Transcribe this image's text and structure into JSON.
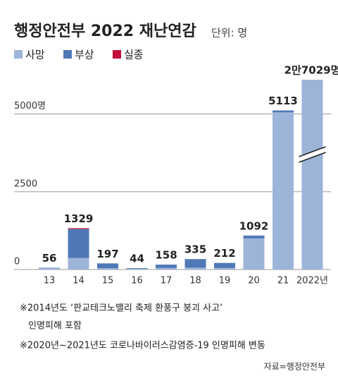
{
  "chart_data": {
    "type": "bar",
    "stacked": true,
    "title": "행정안전부 2022 재난연감",
    "subtitle": "단위: 명",
    "categories": [
      "13",
      "14",
      "15",
      "16",
      "17",
      "18",
      "19",
      "20",
      "21",
      "2022년"
    ],
    "series": [
      {
        "name": "사망",
        "color": "#9db4d9",
        "values": [
          40,
          370,
          40,
          20,
          50,
          60,
          50,
          1000,
          5050,
          26829
        ]
      },
      {
        "name": "부상",
        "color": "#4f78b6",
        "values": [
          16,
          930,
          157,
          24,
          108,
          275,
          162,
          92,
          63,
          200
        ]
      },
      {
        "name": "실종",
        "color": "#c4103c",
        "values": [
          0,
          29,
          0,
          0,
          0,
          0,
          0,
          0,
          0,
          0
        ]
      }
    ],
    "totals": [
      56,
      1329,
      197,
      44,
      158,
      335,
      212,
      1092,
      5113,
      27029
    ],
    "value_labels": [
      "56",
      "1329",
      "197",
      "44",
      "158",
      "335",
      "212",
      "1092",
      "5113",
      "2만7029명"
    ],
    "ylim": [
      0,
      6100
    ],
    "yticks": [
      0,
      2500,
      {
        "value": 5000,
        "label": "5000명"
      }
    ],
    "grid": true,
    "axis_break": true,
    "notes": [
      "※2014년도 ‘판교테크노밸리 축제 환풍구 붕괴 사고’",
      "인명피해 포함",
      "※2020년~2021년도 코로나바이러스감염증-19 인명피해 변동"
    ],
    "source": "자료=행정안전부"
  }
}
